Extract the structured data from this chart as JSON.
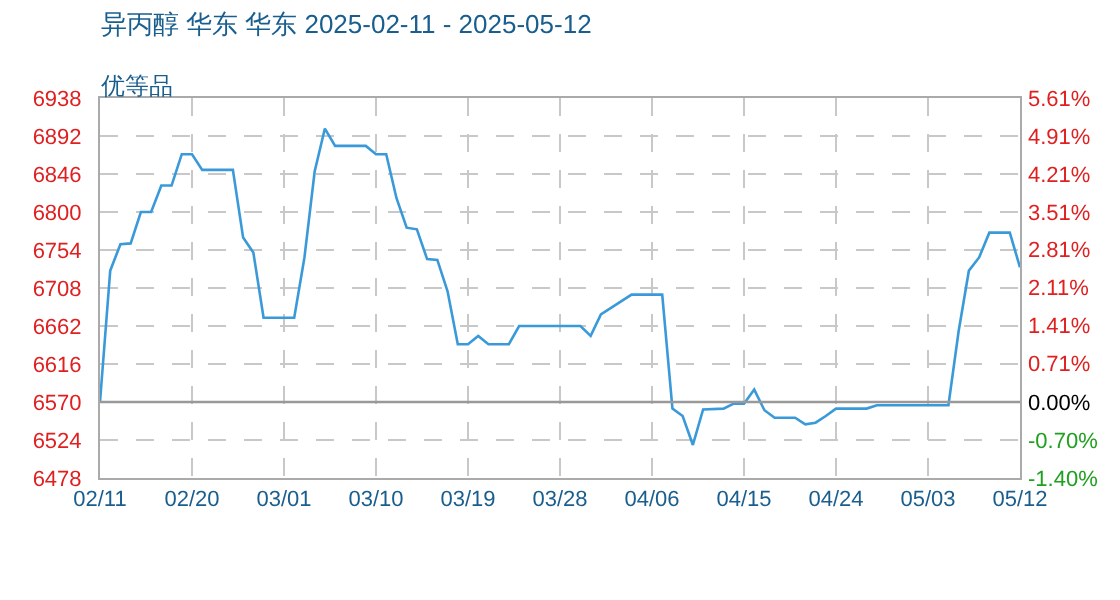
{
  "chart_data": {
    "type": "line",
    "title": "异丙醇 华东 华东 2025-02-11 - 2025-05-12",
    "subtitle": "优等品",
    "x": [
      "2025-02-11",
      "2025-02-12",
      "2025-02-13",
      "2025-02-14",
      "2025-02-15",
      "2025-02-16",
      "2025-02-17",
      "2025-02-18",
      "2025-02-19",
      "2025-02-20",
      "2025-02-21",
      "2025-02-24",
      "2025-02-25",
      "2025-02-26",
      "2025-02-27",
      "2025-03-02",
      "2025-03-03",
      "2025-03-04",
      "2025-03-05",
      "2025-03-06",
      "2025-03-09",
      "2025-03-10",
      "2025-03-11",
      "2025-03-12",
      "2025-03-13",
      "2025-03-14",
      "2025-03-15",
      "2025-03-16",
      "2025-03-17",
      "2025-03-18",
      "2025-03-19",
      "2025-03-20",
      "2025-03-21",
      "2025-03-23",
      "2025-03-24",
      "2025-03-30",
      "2025-03-31",
      "2025-04-01",
      "2025-04-04",
      "2025-04-07",
      "2025-04-08",
      "2025-04-09",
      "2025-04-10",
      "2025-04-11",
      "2025-04-13",
      "2025-04-14",
      "2025-04-15",
      "2025-04-16",
      "2025-04-17",
      "2025-04-18",
      "2025-04-20",
      "2025-04-21",
      "2025-04-22",
      "2025-04-23",
      "2025-04-24",
      "2025-04-27",
      "2025-04-28",
      "2025-05-05",
      "2025-05-06",
      "2025-05-07",
      "2025-05-08",
      "2025-05-09",
      "2025-05-11",
      "2025-05-12"
    ],
    "series": [
      {
        "color": "#3a9ad9",
        "values": [
          6570,
          6729,
          6761,
          6762,
          6800,
          6800,
          6832,
          6832,
          6870,
          6870,
          6851,
          6851,
          6769,
          6751,
          6672,
          6672,
          6745,
          6849,
          6901,
          6880,
          6880,
          6870,
          6870,
          6817,
          6781,
          6779,
          6743,
          6742,
          6704,
          6640,
          6640,
          6650,
          6640,
          6640,
          6662,
          6662,
          6650,
          6676,
          6700,
          6700,
          6562,
          6553,
          6518,
          6561,
          6562,
          6568,
          6568,
          6585,
          6560,
          6551,
          6551,
          6543,
          6545,
          6553,
          6562,
          6562,
          6566,
          6566,
          6656,
          6729,
          6745,
          6775,
          6775,
          6733
        ]
      }
    ],
    "xlim": [
      "2025-02-11",
      "2025-05-12"
    ],
    "xticks": [
      {
        "value": "2025-02-11",
        "label": "02/11"
      },
      {
        "value": "2025-02-20",
        "label": "02/20"
      },
      {
        "value": "2025-03-01",
        "label": "03/01"
      },
      {
        "value": "2025-03-10",
        "label": "03/10"
      },
      {
        "value": "2025-03-19",
        "label": "03/19"
      },
      {
        "value": "2025-03-28",
        "label": "03/28"
      },
      {
        "value": "2025-04-06",
        "label": "04/06"
      },
      {
        "value": "2025-04-15",
        "label": "04/15"
      },
      {
        "value": "2025-04-24",
        "label": "04/24"
      },
      {
        "value": "2025-05-03",
        "label": "05/03"
      },
      {
        "value": "2025-05-12",
        "label": "05/12"
      }
    ],
    "ylim": [
      6478,
      6938
    ],
    "yticks": [
      6478,
      6524,
      6570,
      6616,
      6662,
      6708,
      6754,
      6800,
      6846,
      6892,
      6938
    ],
    "y2lim": [
      -1.4,
      5.61
    ],
    "y2ticks": [
      {
        "value": -1.4,
        "label": "-1.40%"
      },
      {
        "value": -0.7,
        "label": "-0.70%"
      },
      {
        "value": 0,
        "label": "0.00%"
      },
      {
        "value": 0.71,
        "label": "0.71%"
      },
      {
        "value": 1.41,
        "label": "1.41%"
      },
      {
        "value": 2.11,
        "label": "2.11%"
      },
      {
        "value": 2.81,
        "label": "2.81%"
      },
      {
        "value": 3.51,
        "label": "3.51%"
      },
      {
        "value": 4.21,
        "label": "4.21%"
      },
      {
        "value": 4.91,
        "label": "4.91%"
      },
      {
        "value": 5.61,
        "label": "5.61%"
      }
    ],
    "ref_lines": [
      {
        "axis": "y",
        "value": 6570,
        "color": "#999999"
      }
    ],
    "grid": true,
    "marker": "none",
    "line_style": "solid"
  }
}
